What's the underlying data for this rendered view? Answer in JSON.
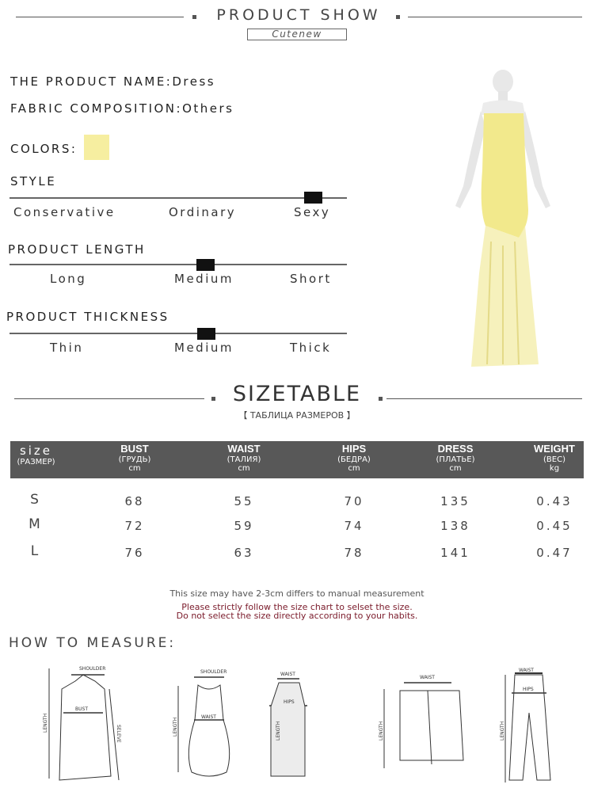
{
  "header": {
    "title": "PRODUCT SHOW",
    "brand": "Cutenew"
  },
  "product": {
    "name_line": "THE PRODUCT NAME:Dress",
    "fabric_line": "FABRIC COMPOSITION:Others",
    "colors_label": "COLORS:",
    "color_swatch": "#f6eea0"
  },
  "scales": [
    {
      "title": "STYLE",
      "options": [
        "Conservative",
        "Ordinary",
        "Sexy"
      ],
      "selected": "Sexy"
    },
    {
      "title": "PRODUCT LENGTH",
      "options": [
        "Long",
        "Medium",
        "Short"
      ],
      "selected": "Medium"
    },
    {
      "title": "PRODUCT THICKNESS",
      "options": [
        "Thin",
        "Medium",
        "Thick"
      ],
      "selected": "Medium"
    }
  ],
  "sizetable": {
    "title": "SIZETABLE",
    "subtitle": "【 ТАБЛИЦА РАЗМЕРОВ 】",
    "columns": [
      {
        "name": "size",
        "ru": "(РАЗМЕР)",
        "unit": ""
      },
      {
        "name": "BUST",
        "ru": "(ГРУДЬ)",
        "unit": "cm"
      },
      {
        "name": "WAIST",
        "ru": "(ТАЛИЯ)",
        "unit": "cm"
      },
      {
        "name": "HIPS",
        "ru": "(БЕДРА)",
        "unit": "cm"
      },
      {
        "name": "DRESS",
        "ru": "(ПЛАТЬЕ)",
        "unit": "cm"
      },
      {
        "name": "WEIGHT",
        "ru": "(ВЕС)",
        "unit": "kg"
      }
    ],
    "rows": [
      [
        "S",
        "68",
        "55",
        "70",
        "135",
        "0.43"
      ],
      [
        "M",
        "72",
        "59",
        "74",
        "138",
        "0.45"
      ],
      [
        "L",
        "76",
        "63",
        "78",
        "141",
        "0.47"
      ]
    ],
    "header_color": "#585858"
  },
  "notes": {
    "line1": "This size may have 2-3cm differs to manual measurement",
    "line2": "Please strictly follow the size chart to selset the size.",
    "line3": "Do not select the size directly according to your habits.",
    "warn_color": "#7a1a2a"
  },
  "measure": {
    "title": "HOW TO MEASURE:",
    "labels": {
      "shoulder": "SHOULDER",
      "bust": "BUST",
      "length": "LENGTH",
      "sleeve": "SELEVE",
      "waist": "WAIST",
      "hips": "HIPS"
    }
  }
}
